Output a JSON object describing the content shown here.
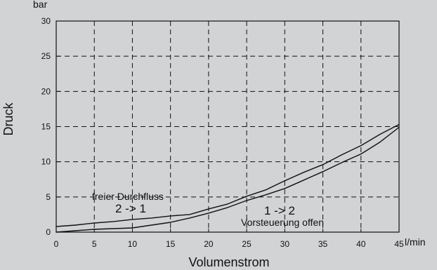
{
  "chart_data": {
    "type": "line",
    "ylabel": "Druck",
    "yunit": "bar",
    "xlabel": "Volumenstrom",
    "xunit": "l/min",
    "xlim": [
      0,
      45
    ],
    "ylim": [
      0,
      30
    ],
    "xticks": [
      0,
      5,
      10,
      15,
      20,
      25,
      30,
      35,
      40,
      45
    ],
    "yticks": [
      0,
      5,
      10,
      15,
      20,
      25,
      30
    ],
    "grid": true,
    "series": [
      {
        "name": "freier Durchfluss 2 -> 1",
        "x": [
          0,
          2.5,
          5,
          7.5,
          10,
          12.5,
          15,
          17.5,
          20,
          22.5,
          25,
          27.5,
          30,
          32.5,
          35,
          37.5,
          40,
          42.5,
          45
        ],
        "y": [
          0.8,
          1.0,
          1.3,
          1.5,
          1.8,
          2.0,
          2.3,
          2.5,
          3.3,
          4.0,
          5.1,
          6.0,
          7.3,
          8.5,
          9.6,
          11.0,
          12.3,
          13.9,
          15.3
        ]
      },
      {
        "name": "Vorsteuerung offen 1 -> 2",
        "x": [
          0,
          2.5,
          5,
          7.5,
          10,
          12.5,
          15,
          17.5,
          20,
          22.5,
          25,
          27.5,
          30,
          32.5,
          35,
          37.5,
          40,
          42.5,
          45
        ],
        "y": [
          0.0,
          0.2,
          0.4,
          0.5,
          0.6,
          1.0,
          1.4,
          2.0,
          2.7,
          3.5,
          4.5,
          5.3,
          6.2,
          7.4,
          8.6,
          9.9,
          11.1,
          12.8,
          14.9
        ]
      }
    ],
    "annotations": [
      {
        "id": "free-flow-title",
        "text": "freier Durchfluss"
      },
      {
        "id": "free-flow-direction",
        "text": "2 -> 1"
      },
      {
        "id": "pilot-direction",
        "text": "1 -> 2"
      },
      {
        "id": "pilot-title",
        "text": "Vorsteuerung offen"
      }
    ],
    "colors": {
      "background": "#d1d3d4",
      "line": "#111111",
      "grid": "#111111"
    }
  }
}
